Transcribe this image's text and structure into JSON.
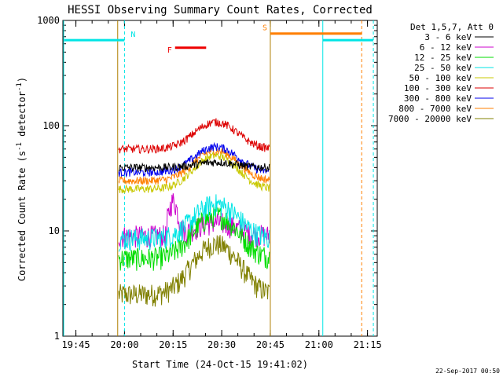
{
  "chart_data": {
    "type": "line",
    "title": "HESSI Observing Summary Count Rates, Corrected",
    "xlabel": "Start Time (24-Oct-15 19:41:02)",
    "ylabel_main": "Corrected Count Rate (s",
    "ylabel_sup1": "-1",
    "ylabel_mid": " detector",
    "ylabel_sup2": "-1",
    "ylabel_end": ")",
    "y_log": true,
    "ylim": [
      1,
      1000
    ],
    "xlim_minutes": [
      19.683,
      21.3
    ],
    "x_ticks": [
      {
        "label": "19:45",
        "value": 19.75
      },
      {
        "label": "20:00",
        "value": 20.0
      },
      {
        "label": "20:15",
        "value": 20.25
      },
      {
        "label": "20:30",
        "value": 20.5
      },
      {
        "label": "20:45",
        "value": 20.75
      },
      {
        "label": "21:00",
        "value": 21.0
      },
      {
        "label": "21:15",
        "value": 21.25
      }
    ],
    "y_ticks": [
      {
        "label": "1",
        "value": 1
      },
      {
        "label": "10",
        "value": 10
      },
      {
        "label": "100",
        "value": 100
      },
      {
        "label": "1000",
        "value": 1000
      }
    ],
    "legend_header": "Det 1,5,7, Att 0",
    "series": [
      {
        "name": "3 - 6 keV",
        "color": "#000000",
        "base": 40,
        "peak": 45
      },
      {
        "name": "6 - 12 keV",
        "color": "#cc00cc",
        "base": 9,
        "peak": 12
      },
      {
        "name": "12 - 25 keV",
        "color": "#00dd00",
        "base": 5.5,
        "peak": 14
      },
      {
        "name": "25 - 50 keV",
        "color": "#00e5e5",
        "base": 8.5,
        "peak": 18
      },
      {
        "name": "50 - 100 keV",
        "color": "#c8c800",
        "base": 25,
        "peak": 52
      },
      {
        "name": "100 - 300 keV",
        "color": "#dd0000",
        "base": 60,
        "peak": 108
      },
      {
        "name": "300 - 800 keV",
        "color": "#0000ee",
        "base": 36,
        "peak": 63
      },
      {
        "name": "800 - 7000 keV",
        "color": "#ff7f00",
        "base": 30,
        "peak": 58
      },
      {
        "name": "7000 - 20000 keV",
        "color": "#808000",
        "base": 2.5,
        "peak": 7.5
      }
    ],
    "data_start": 19.97,
    "data_end": 20.745,
    "flare_peak": 20.47,
    "flags": [
      {
        "label": "N",
        "color": "#00e5e5",
        "x_start": 19.69,
        "x_end": 20.0,
        "level": 650
      },
      {
        "label": "F",
        "color": "#ee0000",
        "x_start": 20.26,
        "x_end": 20.42,
        "level": 550
      },
      {
        "label": "S",
        "color": "#ff7f00",
        "x_start": 20.75,
        "x_end": 21.22,
        "level": 750
      },
      {
        "label": "",
        "color": "#00e5e5",
        "x_start": 21.02,
        "x_end": 21.28,
        "level": 650
      }
    ],
    "vlines": [
      {
        "x": 20.0,
        "color": "#00e5e5",
        "style": "dash"
      },
      {
        "x": 20.75,
        "color": "#b08000",
        "style": "solid"
      },
      {
        "x": 19.965,
        "color": "#b08000",
        "style": "solid"
      },
      {
        "x": 21.02,
        "color": "#00e5e5",
        "style": "solid"
      },
      {
        "x": 21.22,
        "color": "#ff7f00",
        "style": "dash"
      },
      {
        "x": 21.28,
        "color": "#00e5e5",
        "style": "dash"
      }
    ]
  },
  "footer_date": "22-Sep-2017 00:50"
}
